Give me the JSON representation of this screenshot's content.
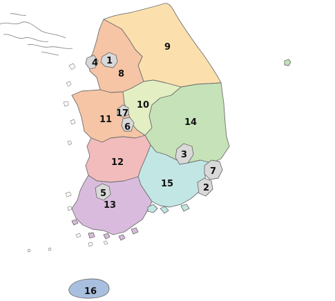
{
  "colors": {
    "background": "#ffffff",
    "border": "#6e6e6e",
    "metro": "#d9d9d9"
  },
  "regions": [
    {
      "id": "1",
      "label": "1",
      "fill": "#d9d9d9"
    },
    {
      "id": "2",
      "label": "2",
      "fill": "#d9d9d9"
    },
    {
      "id": "3",
      "label": "3",
      "fill": "#d9d9d9"
    },
    {
      "id": "4",
      "label": "4",
      "fill": "#d9d9d9"
    },
    {
      "id": "5",
      "label": "5",
      "fill": "#d9d9d9"
    },
    {
      "id": "6",
      "label": "6",
      "fill": "#d9d9d9"
    },
    {
      "id": "7",
      "label": "7",
      "fill": "#d9d9d9"
    },
    {
      "id": "8",
      "label": "8",
      "fill": "#f5c5a5"
    },
    {
      "id": "9",
      "label": "9",
      "fill": "#fbe0ae"
    },
    {
      "id": "10",
      "label": "10",
      "fill": "#e3efc3"
    },
    {
      "id": "11",
      "label": "11",
      "fill": "#f5c5a5"
    },
    {
      "id": "12",
      "label": "12",
      "fill": "#f2bcbc"
    },
    {
      "id": "13",
      "label": "13",
      "fill": "#d9bcdd"
    },
    {
      "id": "14",
      "label": "14",
      "fill": "#c6e2b8"
    },
    {
      "id": "15",
      "label": "15",
      "fill": "#c2e6e4"
    },
    {
      "id": "16",
      "label": "16",
      "fill": "#a9bfe0"
    },
    {
      "id": "17",
      "label": "17",
      "fill": "#d9d9d9"
    }
  ]
}
